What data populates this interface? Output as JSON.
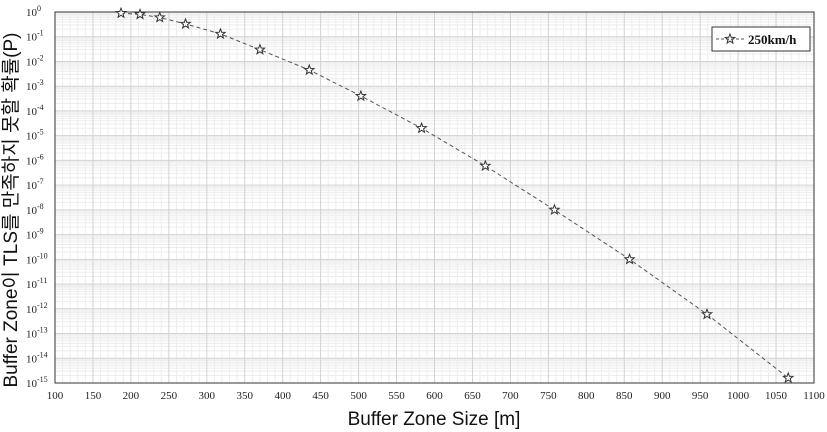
{
  "chart_data": {
    "type": "line",
    "title": "",
    "xlabel": "Buffer Zone Size [m]",
    "ylabel": "Buffer Zone이 TLS를 만족하지 못할 확률(P)",
    "xlim": [
      100,
      1100
    ],
    "ylim_exp": [
      -15,
      0
    ],
    "y_scale": "log",
    "grid": true,
    "legend_position": "top-right",
    "x_ticks": [
      "100",
      "150",
      "200",
      "250",
      "300",
      "350",
      "400",
      "450",
      "500",
      "550",
      "600",
      "650",
      "700",
      "750",
      "800",
      "850",
      "900",
      "950",
      "1000",
      "1050",
      "1100"
    ],
    "y_ticks": [
      {
        "base": "10",
        "exp": "0"
      },
      {
        "base": "10",
        "exp": "-1"
      },
      {
        "base": "10",
        "exp": "-2"
      },
      {
        "base": "10",
        "exp": "-3"
      },
      {
        "base": "10",
        "exp": "-4"
      },
      {
        "base": "10",
        "exp": "-5"
      },
      {
        "base": "10",
        "exp": "-6"
      },
      {
        "base": "10",
        "exp": "-7"
      },
      {
        "base": "10",
        "exp": "-8"
      },
      {
        "base": "10",
        "exp": "-9"
      },
      {
        "base": "10",
        "exp": "-10"
      },
      {
        "base": "10",
        "exp": "-11"
      },
      {
        "base": "10",
        "exp": "-12"
      },
      {
        "base": "10",
        "exp": "-13"
      },
      {
        "base": "10",
        "exp": "-14"
      },
      {
        "base": "10",
        "exp": "-15"
      }
    ],
    "series": [
      {
        "name": "250km/h",
        "marker": "star",
        "line": "dashed",
        "color": "#555555",
        "points": [
          {
            "x": 187,
            "y": 0.9
          },
          {
            "x": 212,
            "y": 0.8
          },
          {
            "x": 238,
            "y": 0.6
          },
          {
            "x": 272,
            "y": 0.33
          },
          {
            "x": 318,
            "y": 0.13
          },
          {
            "x": 370,
            "y": 0.03
          },
          {
            "x": 435,
            "y": 0.0045
          },
          {
            "x": 503,
            "y": 0.0004
          },
          {
            "x": 583,
            "y": 2e-05
          },
          {
            "x": 667,
            "y": 6e-07
          },
          {
            "x": 758,
            "y": 1e-08
          },
          {
            "x": 857,
            "y": 1e-10
          },
          {
            "x": 959,
            "y": 6e-13
          },
          {
            "x": 1066,
            "y": 1.6e-15
          }
        ]
      }
    ]
  }
}
